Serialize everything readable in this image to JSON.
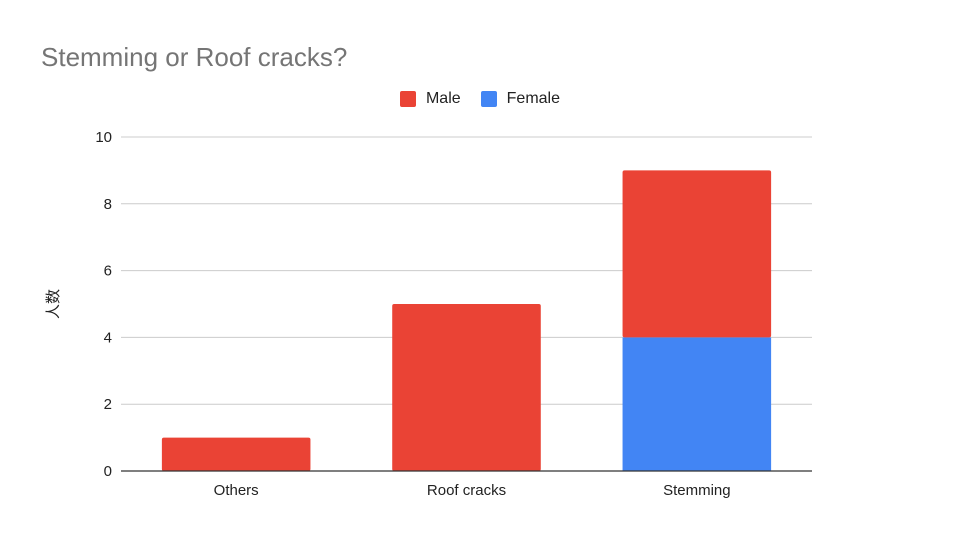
{
  "chart_data": {
    "type": "bar",
    "stacked": true,
    "title": "Stemming or Roof cracks?",
    "ylabel": "人数",
    "xlabel": "",
    "categories": [
      "Others",
      "Roof cracks",
      "Stemming"
    ],
    "series": [
      {
        "name": "Male",
        "values": [
          1,
          5,
          5
        ],
        "color": "#ea4335"
      },
      {
        "name": "Female",
        "values": [
          0,
          0,
          4
        ],
        "color": "#4285f4"
      }
    ],
    "ylim": [
      0,
      10
    ],
    "yticks": [
      0,
      2,
      4,
      6,
      8,
      10
    ],
    "grid": true,
    "legend_position": "top-center"
  }
}
